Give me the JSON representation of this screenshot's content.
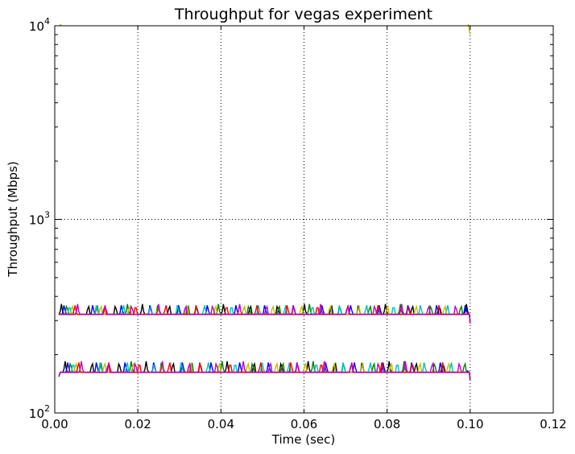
{
  "chart_data": {
    "type": "line",
    "title": "Throughput for vegas experiment",
    "xlabel": "Time (sec)",
    "ylabel": "Throughput (Mbps)",
    "xlim": [
      0.0,
      0.12
    ],
    "ylim": [
      100,
      10000
    ],
    "yscale": "log",
    "grid": true,
    "x_ticks": [
      "0.00",
      "0.02",
      "0.04",
      "0.06",
      "0.08",
      "0.10",
      "0.12"
    ],
    "y_tick_labels": [
      {
        "base": "10",
        "exp": "2"
      },
      {
        "base": "10",
        "exp": "3"
      },
      {
        "base": "10",
        "exp": "4"
      }
    ],
    "colors": [
      "#000000",
      "#0000ff",
      "#008000",
      "#00bfbf",
      "#bfbf00",
      "#ff0000",
      "#bf00bf"
    ],
    "series_groups": [
      {
        "description": "upper flows",
        "baseline": 323,
        "peak": 365,
        "x_start": 0.001,
        "x_end": 0.1,
        "end_value": 290,
        "count": 7
      },
      {
        "description": "lower flows",
        "baseline": 162,
        "peak": 185,
        "x_start": 0.001,
        "x_end": 0.1,
        "end_value": 148,
        "count": 7
      }
    ],
    "spike_series": [
      {
        "x": [
          0.0012,
          0.002
        ],
        "values": [
          10000,
          10500
        ],
        "color": "#bfbf00"
      },
      {
        "x": [
          0.0995,
          0.1
        ],
        "values": [
          10300,
          9000
        ],
        "color": "#bfbf00"
      }
    ]
  }
}
